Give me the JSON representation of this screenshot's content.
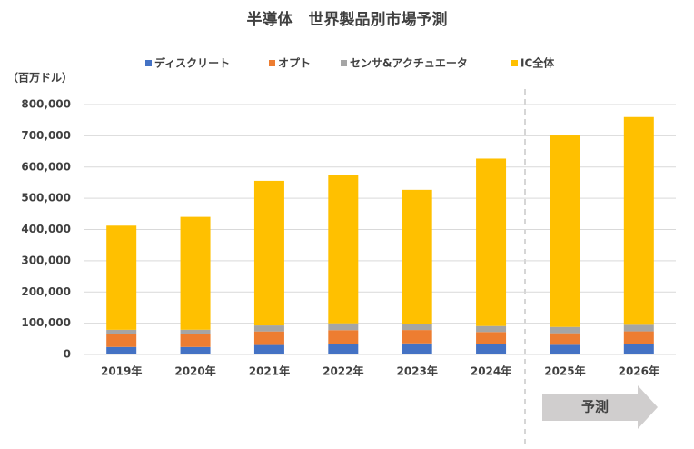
{
  "chart_data": {
    "type": "stacked-bar",
    "title": "半導体　世界製品別市場予測",
    "y_label": "（百万ドル）",
    "categories": [
      "2019年",
      "2020年",
      "2021年",
      "2022年",
      "2023年",
      "2024年",
      "2025年",
      "2026年"
    ],
    "series": [
      {
        "name": "ディスクリート",
        "color": "#4472c4",
        "values": [
          23881,
          23804,
          30337,
          33993,
          35530,
          32000,
          31000,
          34000
        ]
      },
      {
        "name": "オプト",
        "color": "#ed7d31",
        "values": [
          41561,
          40397,
          43404,
          43908,
          42747,
          40000,
          37000,
          40000
        ]
      },
      {
        "name": "センサ&アクチュエータ",
        "color": "#a5a5a5",
        "values": [
          13511,
          14962,
          19149,
          21782,
          19730,
          19000,
          20000,
          21000
        ]
      },
      {
        "name": "IC全体",
        "color": "#ffc000",
        "values": [
          333354,
          361226,
          463002,
          474402,
          428995,
          536000,
          613000,
          665000
        ]
      }
    ],
    "ylim": [
      0,
      800000
    ],
    "yticks": [
      0,
      {
        "value": 100000,
        "label": "100,000"
      },
      {
        "value": 200000,
        "label": "200,000"
      },
      {
        "value": 300000,
        "label": "300,000"
      },
      {
        "value": 400000,
        "label": "400,000"
      },
      {
        "value": 500000,
        "label": "500,000"
      },
      {
        "value": 600000,
        "label": "600,000"
      },
      {
        "value": 700000,
        "label": "700,000"
      },
      {
        "value": 800000,
        "label": "800,000"
      }
    ],
    "grid": true,
    "forecast_label": "予測"
  }
}
